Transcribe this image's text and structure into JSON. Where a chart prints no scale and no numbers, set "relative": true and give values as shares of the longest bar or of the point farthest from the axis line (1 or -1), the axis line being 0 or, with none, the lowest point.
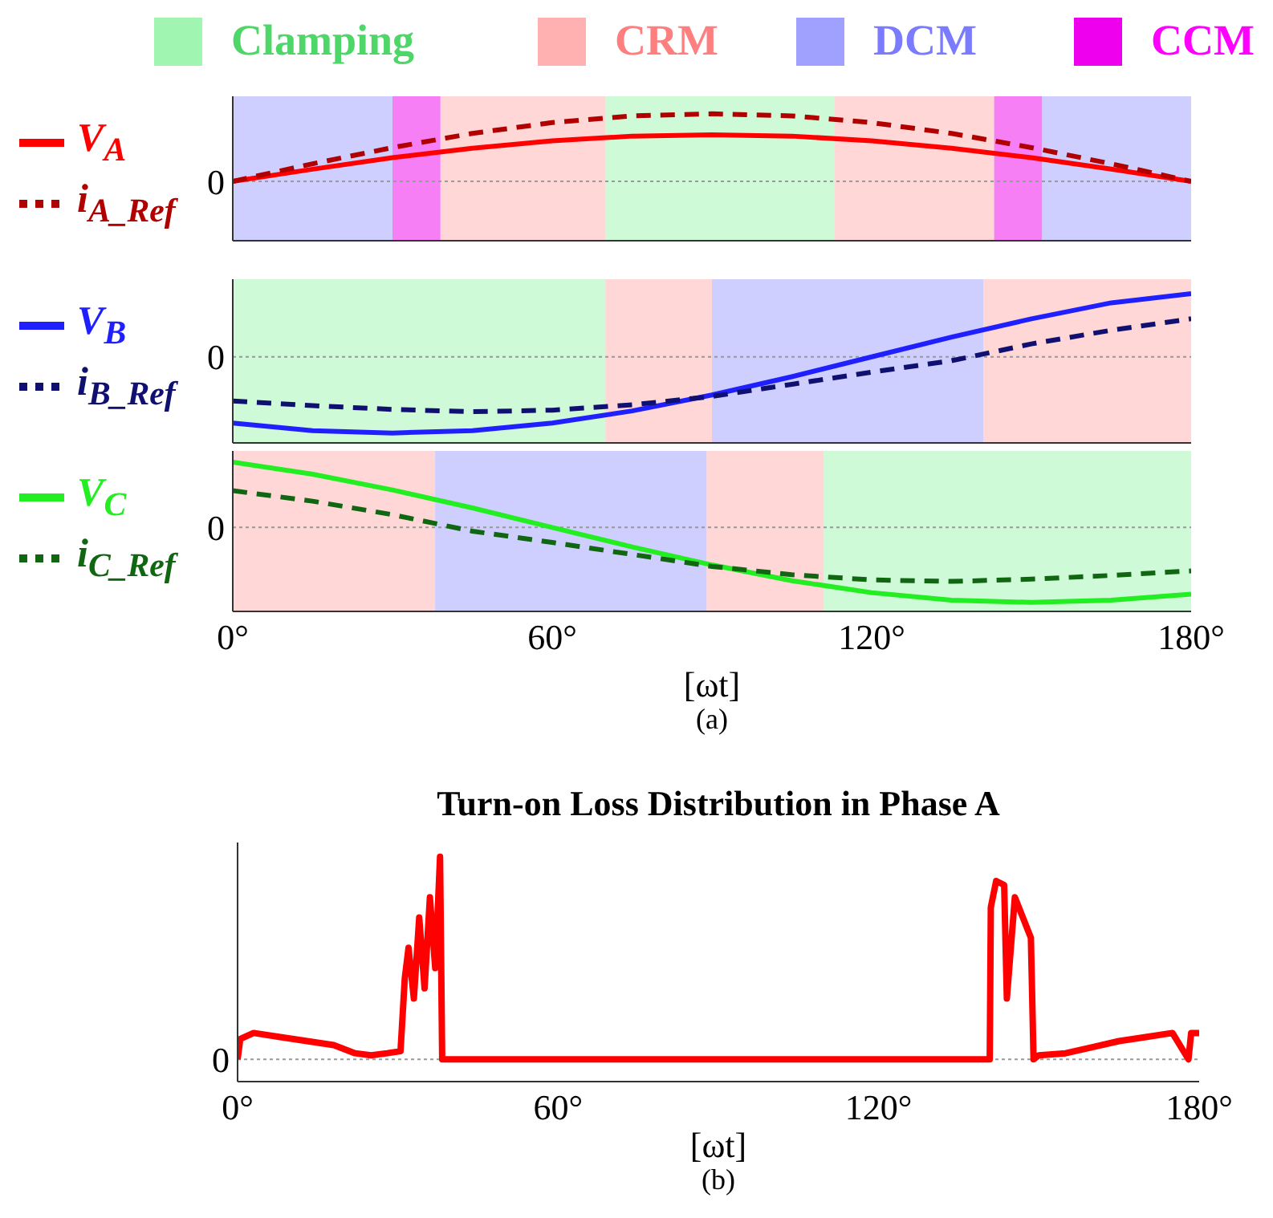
{
  "chart_data": [
    {
      "type": "line",
      "relative": true,
      "legend": "left",
      "xlim": [
        0,
        180
      ],
      "ref_lines": [
        {
          "axis": "y",
          "value": 0,
          "label": "0",
          "color": "#999999",
          "line_style": "dotted"
        }
      ],
      "x": [
        0,
        15,
        30,
        45,
        60,
        75,
        90,
        105,
        120,
        135,
        150,
        165,
        180
      ],
      "bands": [
        {
          "axis": "x",
          "from": 70,
          "to": 113,
          "label": "Clamping",
          "color": "#a0f5b0"
        },
        {
          "axis": "x",
          "from": 39,
          "to": 70,
          "label": "CRM",
          "color": "#ffb0b0"
        },
        {
          "axis": "x",
          "from": 0,
          "to": 30,
          "label": "DCM",
          "color": "#a0a0ff"
        },
        {
          "axis": "x",
          "from": 30,
          "to": 39,
          "label": "CCM",
          "color": "#ee00ee"
        },
        {
          "axis": "x",
          "from": 113,
          "to": 143,
          "color": "#ffb0b0"
        },
        {
          "axis": "x",
          "from": 143,
          "to": 152,
          "color": "#ee00ee"
        },
        {
          "axis": "x",
          "from": 152,
          "to": 180,
          "color": "#a0a0ff"
        }
      ],
      "series": [
        {
          "name": "V$_{A}$",
          "color": "#ff0000",
          "values": [
            0,
            0.18,
            0.35,
            0.49,
            0.6,
            0.67,
            0.69,
            0.67,
            0.6,
            0.49,
            0.35,
            0.18,
            0
          ]
        },
        {
          "name": "i$_{A_Ref}$",
          "color": "#b00000",
          "line_style": "dashed",
          "values": [
            0,
            0.26,
            0.5,
            0.71,
            0.87,
            0.97,
            1,
            0.97,
            0.87,
            0.71,
            0.5,
            0.26,
            0
          ]
        }
      ]
    },
    {
      "type": "line",
      "relative": true,
      "legend": "left",
      "xlim": [
        0,
        180
      ],
      "ref_lines": [
        {
          "axis": "y",
          "value": 0,
          "label": "0",
          "color": "#999999",
          "line_style": "dotted"
        }
      ],
      "x": [
        0,
        15,
        30,
        45,
        60,
        75,
        90,
        105,
        120,
        135,
        150,
        165,
        180
      ],
      "bands": [
        {
          "axis": "x",
          "from": 0,
          "to": 70,
          "color": "#a0f5b0"
        },
        {
          "axis": "x",
          "from": 70,
          "to": 90,
          "color": "#ffb0b0"
        },
        {
          "axis": "x",
          "from": 90,
          "to": 141,
          "color": "#a0a0ff"
        },
        {
          "axis": "x",
          "from": 141,
          "to": 180,
          "color": "#ffb0b0"
        }
      ],
      "series": [
        {
          "name": "V$_{B}$",
          "color": "#2020ff",
          "values": [
            -0.87,
            -0.97,
            -1,
            -0.97,
            -0.87,
            -0.71,
            -0.5,
            -0.26,
            0,
            0.26,
            0.5,
            0.71,
            0.83
          ]
        },
        {
          "name": "i$_{B_Ref}$",
          "color": "#101070",
          "line_style": "dashed",
          "values": [
            -0.58,
            -0.64,
            -0.69,
            -0.72,
            -0.7,
            -0.63,
            -0.52,
            -0.36,
            -0.2,
            -0.05,
            0.17,
            0.35,
            0.5
          ]
        }
      ]
    },
    {
      "type": "line",
      "relative": true,
      "legend": "left",
      "xlim": [
        0,
        180
      ],
      "ref_lines": [
        {
          "axis": "y",
          "value": 0,
          "label": "0",
          "color": "#999999",
          "line_style": "dotted"
        }
      ],
      "xticks": [
        {
          "value": 0,
          "label": "0°"
        },
        {
          "value": 60,
          "label": "60°"
        },
        {
          "value": 120,
          "label": "120°"
        },
        {
          "value": 180,
          "label": "180°"
        }
      ],
      "xlabel": "[ωt]",
      "annotations": [
        "(a)"
      ],
      "x": [
        0,
        15,
        30,
        45,
        60,
        75,
        90,
        105,
        120,
        135,
        150,
        165,
        180
      ],
      "bands": [
        {
          "axis": "x",
          "from": 0,
          "to": 38,
          "color": "#ffb0b0"
        },
        {
          "axis": "x",
          "from": 38,
          "to": 89,
          "color": "#a0a0ff"
        },
        {
          "axis": "x",
          "from": 89,
          "to": 111,
          "color": "#ffb0b0"
        },
        {
          "axis": "x",
          "from": 111,
          "to": 180,
          "color": "#a0f5b0"
        }
      ],
      "series": [
        {
          "name": "V$_{C}$",
          "color": "#22ee22",
          "values": [
            0.87,
            0.71,
            0.5,
            0.26,
            0,
            -0.26,
            -0.5,
            -0.71,
            -0.87,
            -0.97,
            -1,
            -0.97,
            -0.89
          ]
        },
        {
          "name": "i$_{C_Ref}$",
          "color": "#116611",
          "line_style": "dashed",
          "values": [
            0.49,
            0.35,
            0.17,
            -0.05,
            -0.2,
            -0.36,
            -0.52,
            -0.63,
            -0.7,
            -0.72,
            -0.69,
            -0.64,
            -0.58
          ]
        }
      ]
    },
    {
      "type": "line",
      "relative": true,
      "title": "Turn-on Loss Distribution in Phase A",
      "xlim": [
        0,
        180
      ],
      "ref_lines": [
        {
          "axis": "y",
          "value": 0,
          "label": "0",
          "color": "#999999",
          "line_style": "dotted"
        }
      ],
      "xticks": [
        {
          "value": 0,
          "label": "0°"
        },
        {
          "value": 60,
          "label": "60°"
        },
        {
          "value": 120,
          "label": "120°"
        },
        {
          "value": 180,
          "label": "180°"
        }
      ],
      "xlabel": "[ωt]",
      "annotations": [
        "(b)"
      ],
      "x": [
        0,
        0.5,
        3,
        8,
        13,
        18,
        22,
        25,
        28,
        30.5,
        31.3,
        32,
        33,
        34,
        35,
        36,
        37,
        37.9,
        38.3,
        60,
        120,
        140.8,
        141,
        142,
        143.5,
        144,
        145.5,
        147,
        148.5,
        149,
        150,
        155,
        160,
        165,
        170,
        175,
        178,
        178.5,
        180
      ],
      "series": [
        {
          "color": "#ff0000",
          "values": [
            0,
            0.1,
            0.13,
            0.11,
            0.09,
            0.07,
            0.03,
            0.02,
            0.03,
            0.04,
            0.4,
            0.55,
            0.3,
            0.7,
            0.35,
            0.8,
            0.45,
            1,
            0,
            0,
            0,
            0,
            0.75,
            0.88,
            0.86,
            0.3,
            0.8,
            0.7,
            0.6,
            0,
            0.02,
            0.03,
            0.06,
            0.09,
            0.11,
            0.13,
            0,
            0.13,
            0.13
          ]
        }
      ]
    }
  ]
}
